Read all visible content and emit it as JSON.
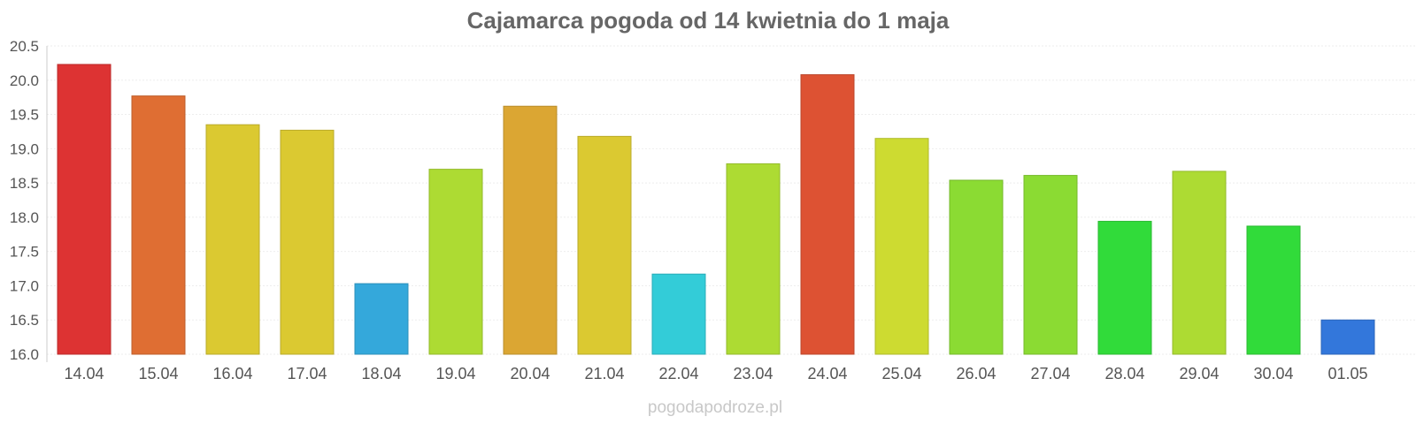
{
  "chart_data": {
    "type": "bar",
    "title": "Cajamarca pogoda od 14 kwietnia do 1 maja",
    "xlabel": "",
    "ylabel": "",
    "ylim": [
      16.0,
      20.5
    ],
    "yticks": [
      "16.0",
      "16.5",
      "17.0",
      "17.5",
      "18.0",
      "18.5",
      "19.0",
      "19.5",
      "20.0",
      "20.5"
    ],
    "grid": true,
    "legend": "none",
    "categories": [
      "14.04",
      "15.04",
      "16.04",
      "17.04",
      "18.04",
      "19.04",
      "20.04",
      "21.04",
      "22.04",
      "23.04",
      "24.04",
      "25.04",
      "26.04",
      "27.04",
      "28.04",
      "29.04",
      "30.04",
      "01.05"
    ],
    "values": [
      20.23,
      19.77,
      19.35,
      19.27,
      17.03,
      18.7,
      19.62,
      19.18,
      17.17,
      18.78,
      20.08,
      19.15,
      18.54,
      18.61,
      17.94,
      18.67,
      17.87,
      16.5
    ],
    "colors": [
      "#dd3333",
      "#df6e33",
      "#dbc931",
      "#dbc931",
      "#34a8db",
      "#addb33",
      "#dba633",
      "#dbc931",
      "#33ccd8",
      "#addb33",
      "#dd5233",
      "#cddb31",
      "#8bdb33",
      "#8bdb33",
      "#31db3a",
      "#addb33",
      "#31db3a",
      "#3377db"
    ]
  },
  "watermark": "pogodapodroze.pl"
}
